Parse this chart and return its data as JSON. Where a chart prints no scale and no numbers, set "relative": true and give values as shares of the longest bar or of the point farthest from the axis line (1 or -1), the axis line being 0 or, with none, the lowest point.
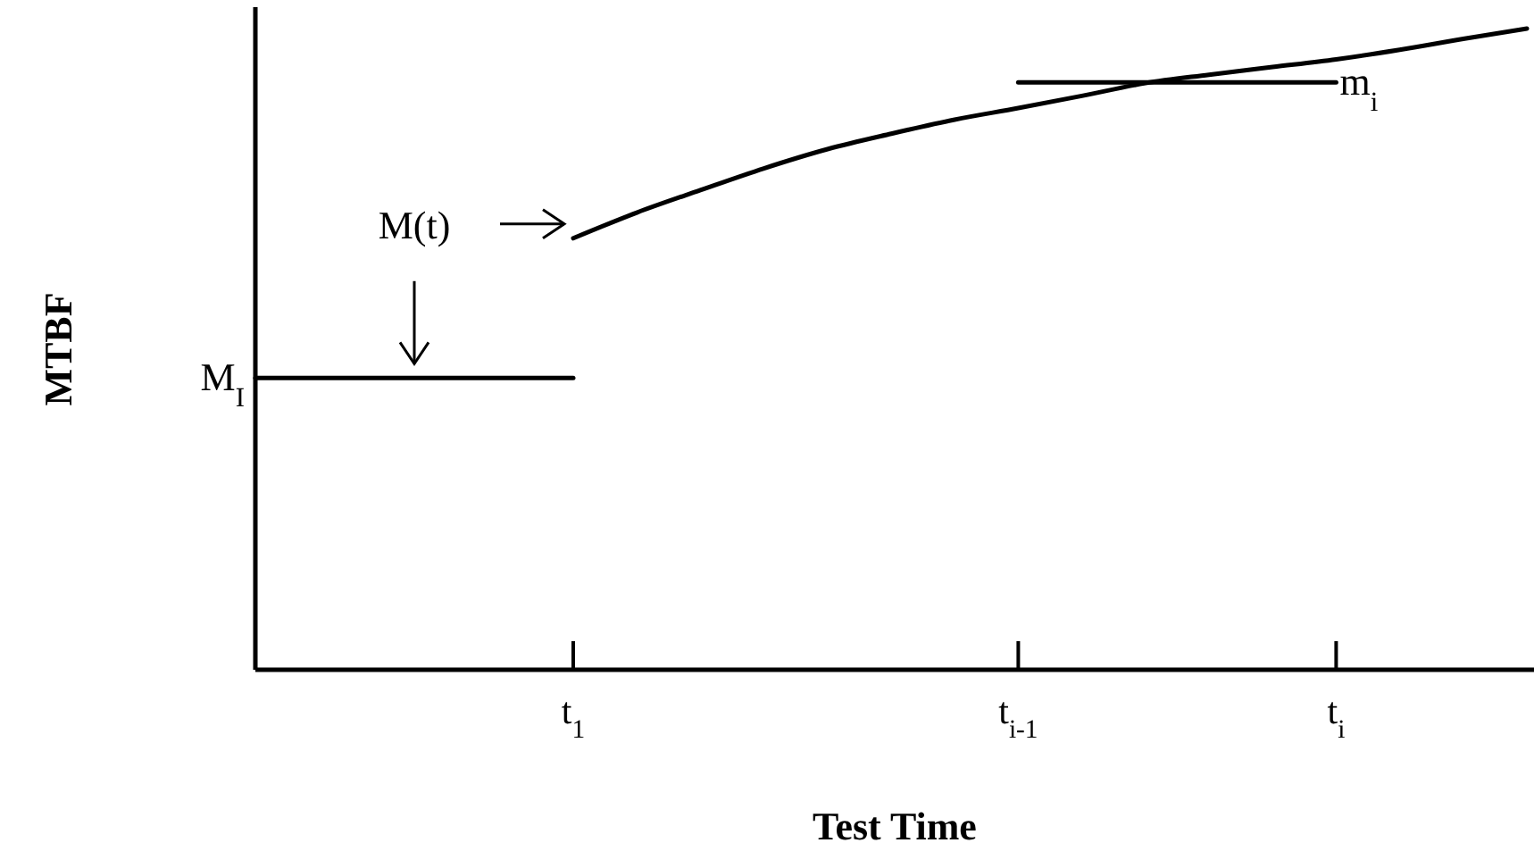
{
  "chart_data": {
    "type": "line",
    "xlabel": "Test Time",
    "ylabel": "MTBF",
    "relative": true,
    "categories": [
      null,
      null,
      null,
      null,
      null,
      "t$_{1}$",
      null,
      null,
      null,
      null,
      null,
      null,
      "t$_{i-1}$",
      null,
      null,
      null,
      null,
      "t$_{i}$",
      null,
      null,
      null
    ],
    "series": [
      {
        "name": "M$_{I}$",
        "color": "#000000",
        "values": [
          0.455,
          0.455,
          0.455,
          0.455,
          0.455,
          0.455,
          null,
          null,
          null,
          null,
          null,
          null,
          null,
          null,
          null,
          null,
          null,
          null,
          null,
          null,
          null
        ]
      },
      {
        "color": "#000000",
        "values": [
          null,
          null,
          null,
          null,
          null,
          0.673,
          0.713,
          0.748,
          0.782,
          0.812,
          0.836,
          0.858,
          0.876,
          0.895,
          0.915,
          0.928,
          0.94,
          0.952,
          0.967,
          0.984,
          1
        ]
      },
      {
        "name": "m$_{i}$",
        "color": "#000000",
        "values": [
          null,
          null,
          null,
          null,
          null,
          null,
          null,
          null,
          null,
          null,
          null,
          null,
          0.916,
          0.916,
          0.916,
          0.916,
          0.916,
          0.916,
          null,
          null,
          null
        ]
      }
    ],
    "annotations": [
      "M(t)"
    ],
    "legend": false,
    "grid": false,
    "marker": "none",
    "line_style": "solid",
    "tick_labels": "x"
  }
}
